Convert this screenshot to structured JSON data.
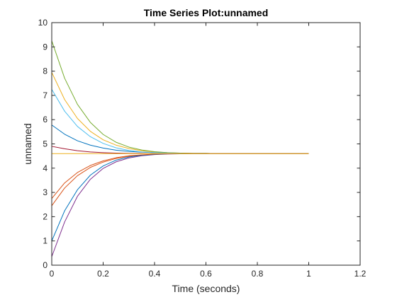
{
  "chart_data": {
    "type": "line",
    "title": "Time Series Plot:unnamed",
    "xlabel": "Time (seconds)",
    "ylabel": "unnamed",
    "xlim": [
      0,
      1.2
    ],
    "ylim": [
      0,
      10
    ],
    "xticks": [
      0,
      0.2,
      0.4,
      0.6,
      0.8,
      1,
      1.2
    ],
    "xtick_labels": [
      "0",
      "0.2",
      "0.4",
      "0.6",
      "0.8",
      "1",
      "1.2"
    ],
    "yticks": [
      0,
      1,
      2,
      3,
      4,
      5,
      6,
      7,
      8,
      9,
      10
    ],
    "ytick_labels": [
      "0",
      "1",
      "2",
      "3",
      "4",
      "5",
      "6",
      "7",
      "8",
      "9",
      "10"
    ],
    "grid": false,
    "box": true,
    "x": [
      0,
      0.05,
      0.1,
      0.15,
      0.2,
      0.25,
      0.3,
      0.35,
      0.4,
      0.45,
      0.5,
      0.55,
      0.6,
      0.65,
      0.7,
      0.75,
      0.8,
      0.85,
      0.9,
      0.95,
      1.0
    ],
    "series": [
      {
        "color": "#0072BD",
        "values": [
          5.78,
          5.4,
          5.13,
          4.95,
          4.83,
          4.74,
          4.69,
          4.66,
          4.64,
          4.62,
          4.61,
          4.61,
          4.61,
          4.6,
          4.6,
          4.6,
          4.6,
          4.6,
          4.6,
          4.6,
          4.6
        ]
      },
      {
        "color": "#D95319",
        "values": [
          2.45,
          3.18,
          3.69,
          4.03,
          4.25,
          4.4,
          4.49,
          4.54,
          4.57,
          4.59,
          4.59,
          4.6,
          4.6,
          4.6,
          4.6,
          4.6,
          4.6,
          4.6,
          4.6,
          4.6,
          4.6
        ]
      },
      {
        "color": "#EDB120",
        "values": [
          7.95,
          6.83,
          6.05,
          5.52,
          5.17,
          4.95,
          4.81,
          4.72,
          4.67,
          4.64,
          4.62,
          4.61,
          4.61,
          4.6,
          4.6,
          4.6,
          4.6,
          4.6,
          4.6,
          4.6,
          4.6
        ]
      },
      {
        "color": "#7E2F8E",
        "values": [
          0.35,
          1.78,
          2.84,
          3.54,
          3.99,
          4.26,
          4.42,
          4.51,
          4.56,
          4.58,
          4.59,
          4.6,
          4.6,
          4.6,
          4.6,
          4.6,
          4.6,
          4.6,
          4.6,
          4.6,
          4.6
        ]
      },
      {
        "color": "#77AC30",
        "values": [
          9.25,
          7.71,
          6.63,
          5.89,
          5.39,
          5.07,
          4.87,
          4.75,
          4.68,
          4.64,
          4.62,
          4.61,
          4.61,
          4.6,
          4.6,
          4.6,
          4.6,
          4.6,
          4.6,
          4.6,
          4.6
        ]
      },
      {
        "color": "#4DBEEE",
        "values": [
          7.25,
          6.35,
          5.72,
          5.3,
          5.02,
          4.84,
          4.73,
          4.67,
          4.64,
          4.62,
          4.61,
          4.6,
          4.6,
          4.6,
          4.6,
          4.6,
          4.6,
          4.6,
          4.6,
          4.6,
          4.6
        ]
      },
      {
        "color": "#A2142F",
        "values": [
          4.9,
          4.8,
          4.72,
          4.67,
          4.64,
          4.62,
          4.61,
          4.61,
          4.6,
          4.6,
          4.6,
          4.6,
          4.6,
          4.6,
          4.6,
          4.6,
          4.6,
          4.6,
          4.6,
          4.6,
          4.6
        ]
      },
      {
        "color": "#0072BD",
        "values": [
          1.0,
          2.24,
          3.11,
          3.71,
          4.09,
          4.33,
          4.46,
          4.53,
          4.57,
          4.59,
          4.59,
          4.6,
          4.6,
          4.6,
          4.6,
          4.6,
          4.6,
          4.6,
          4.6,
          4.6,
          4.6
        ]
      },
      {
        "color": "#D95319",
        "values": [
          2.75,
          3.39,
          3.82,
          4.11,
          4.3,
          4.43,
          4.51,
          4.55,
          4.58,
          4.59,
          4.6,
          4.6,
          4.6,
          4.6,
          4.6,
          4.6,
          4.6,
          4.6,
          4.6,
          4.6,
          4.6
        ]
      },
      {
        "color": "#EDB120",
        "values": [
          4.6,
          4.6,
          4.6,
          4.6,
          4.6,
          4.6,
          4.6,
          4.6,
          4.6,
          4.6,
          4.6,
          4.6,
          4.6,
          4.6,
          4.6,
          4.6,
          4.6,
          4.6,
          4.6,
          4.6,
          4.6
        ]
      }
    ]
  }
}
